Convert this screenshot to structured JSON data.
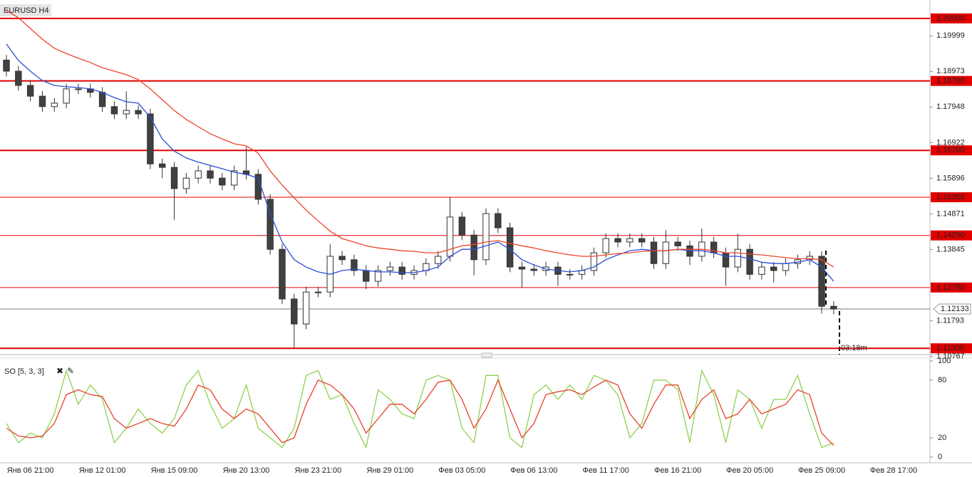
{
  "chart_data": [
    {
      "type": "candlestick",
      "title": "EURUSD H4",
      "categories": [
        null,
        null,
        "Янв 06 21:00",
        null,
        null,
        null,
        null,
        null,
        "Янв 12 01:00",
        null,
        null,
        null,
        null,
        null,
        "Янв 15 09:00",
        null,
        null,
        null,
        null,
        null,
        "Янв 20 13:00",
        null,
        null,
        null,
        null,
        null,
        "Янв 23 21:00",
        null,
        null,
        null,
        null,
        null,
        "Янв 29 01:00",
        null,
        null,
        null,
        null,
        null,
        "Фев 03 05:00",
        null,
        null,
        null,
        null,
        null,
        "Фев 06 13:00",
        null,
        null,
        null,
        null,
        null,
        "Фев 11 17:00",
        null,
        null,
        null,
        null,
        null,
        "Фев 16 21:00",
        null,
        null,
        null,
        null,
        null,
        "Фев 20 05:00",
        null,
        null,
        null,
        null,
        null,
        "Фев 25 09:00",
        null,
        null,
        null,
        null,
        null,
        "Фев 28 17:00"
      ],
      "open": [
        1.193,
        1.1898,
        1.1857,
        1.1826,
        1.1796,
        1.1806,
        1.1847,
        1.1847,
        1.1837,
        1.1796,
        1.1775,
        1.1785,
        1.1775,
        1.1631,
        1.1621,
        1.156,
        1.159,
        1.1611,
        1.159,
        1.157,
        1.1611,
        1.1601,
        1.1529,
        1.1385,
        1.1242,
        1.117,
        1.1262,
        1.1262,
        1.1365,
        1.1355,
        1.1324,
        1.1293,
        1.1324,
        1.1334,
        1.1313,
        1.1324,
        1.1344,
        1.1365,
        1.1478,
        1.1426,
        1.1355,
        1.1488,
        1.1447,
        1.1334,
        1.1328,
        1.1324,
        1.1334,
        1.1313,
        1.1313,
        1.1324,
        1.1375,
        1.1416,
        1.1406,
        1.1416,
        1.1406,
        1.1344,
        1.1406,
        1.1395,
        1.1365,
        1.1406,
        1.1375,
        1.1334,
        1.1385,
        1.1313,
        1.1334,
        1.1324,
        1.1344,
        1.1355,
        1.1365,
        1.1221,
        null,
        null,
        null,
        null,
        null
      ],
      "high": [
        1.1945,
        1.1913,
        1.1872,
        1.1841,
        1.1821,
        1.1862,
        1.1862,
        1.1862,
        1.1852,
        1.1811,
        1.184,
        1.18,
        1.179,
        1.1646,
        1.1636,
        1.1605,
        1.1626,
        1.1626,
        1.1605,
        1.1626,
        1.168,
        1.1616,
        1.1544,
        1.14,
        1.1257,
        1.1277,
        1.1277,
        1.14,
        1.138,
        1.137,
        1.1339,
        1.1339,
        1.1349,
        1.1349,
        1.1339,
        1.1359,
        1.138,
        1.1535,
        1.1493,
        1.1441,
        1.1503,
        1.1503,
        1.1462,
        1.1349,
        1.1343,
        1.1349,
        1.1349,
        1.1328,
        1.1339,
        1.139,
        1.1431,
        1.1431,
        1.1431,
        1.1431,
        1.1421,
        1.144,
        1.1421,
        1.141,
        1.1445,
        1.1421,
        1.139,
        1.143,
        1.14,
        1.1349,
        1.1349,
        1.1359,
        1.137,
        1.138,
        1.138,
        1.1236,
        null,
        null,
        null,
        null,
        null
      ],
      "low": [
        1.1883,
        1.1842,
        1.1811,
        1.1781,
        1.1781,
        1.1791,
        1.1832,
        1.1822,
        1.1781,
        1.176,
        1.176,
        1.176,
        1.1616,
        1.159,
        1.147,
        1.1545,
        1.1575,
        1.1575,
        1.1555,
        1.1555,
        1.1586,
        1.1514,
        1.137,
        1.1227,
        1.11,
        1.1155,
        1.1247,
        1.1247,
        1.134,
        1.1309,
        1.127,
        1.1278,
        1.1309,
        1.1298,
        1.1298,
        1.1309,
        1.1329,
        1.135,
        1.1411,
        1.131,
        1.134,
        1.1432,
        1.1319,
        1.1275,
        1.1309,
        1.1309,
        1.128,
        1.1298,
        1.1298,
        1.1309,
        1.136,
        1.1391,
        1.1391,
        1.1391,
        1.1329,
        1.1329,
        1.138,
        1.134,
        1.135,
        1.136,
        1.128,
        1.1319,
        1.1298,
        1.1298,
        1.129,
        1.1309,
        1.1329,
        1.134,
        1.12,
        1.1198,
        null,
        null,
        null,
        null,
        null
      ],
      "close": [
        1.1898,
        1.1857,
        1.1826,
        1.1796,
        1.1806,
        1.1847,
        1.1847,
        1.1837,
        1.1796,
        1.1775,
        1.1785,
        1.1775,
        1.1631,
        1.1621,
        1.156,
        1.159,
        1.1611,
        1.159,
        1.157,
        1.1611,
        1.1601,
        1.1529,
        1.1385,
        1.1242,
        1.117,
        1.1262,
        1.1262,
        1.1365,
        1.1355,
        1.1324,
        1.1293,
        1.1324,
        1.1334,
        1.1313,
        1.1324,
        1.1344,
        1.1365,
        1.1478,
        1.1426,
        1.1355,
        1.1488,
        1.1447,
        1.1334,
        1.1328,
        1.1324,
        1.1334,
        1.1313,
        1.1313,
        1.1324,
        1.1375,
        1.1416,
        1.1406,
        1.1416,
        1.1406,
        1.1344,
        1.1406,
        1.1395,
        1.1365,
        1.1406,
        1.1375,
        1.1334,
        1.1385,
        1.1313,
        1.1334,
        1.1324,
        1.1344,
        1.1355,
        1.1365,
        1.1221,
        1.12133,
        null,
        null,
        null,
        null,
        null
      ],
      "up_color": "#ffffff",
      "down_color": "#404040",
      "wick_color": "#333333",
      "series": [
        {
          "color": "#2a4fd6",
          "values": [
            1.1976,
            1.1929,
            1.1898,
            1.1871,
            1.1857,
            1.1853,
            1.1851,
            1.1847,
            1.1837,
            1.1822,
            1.181,
            1.1806,
            1.1765,
            1.1703,
            1.1668,
            1.1648,
            1.1636,
            1.1627,
            1.1617,
            1.1607,
            1.1601,
            1.159,
            1.1488,
            1.1406,
            1.1355,
            1.1334,
            1.132,
            1.1313,
            1.1324,
            1.1328,
            1.1324,
            1.132,
            1.132,
            1.1318,
            1.1318,
            1.1324,
            1.1334,
            1.1365,
            1.1385,
            1.1385,
            1.1395,
            1.1406,
            1.1385,
            1.1355,
            1.134,
            1.1328,
            1.1324,
            1.132,
            1.1324,
            1.1334,
            1.1355,
            1.1369,
            1.1381,
            1.1385,
            1.1381,
            1.1381,
            1.1385,
            1.1381,
            1.1381,
            1.1375,
            1.1365,
            1.1365,
            1.1358,
            1.1348,
            1.1344,
            1.1344,
            1.1348,
            1.1355,
            1.1334,
            1.1293,
            null,
            null,
            null,
            null,
            null
          ]
        },
        {
          "color": "#f0452a",
          "values": [
            1.2073,
            1.2052,
            1.2021,
            1.199,
            1.1964,
            1.1949,
            1.1935,
            1.1923,
            1.1908,
            1.1898,
            1.1888,
            1.1874,
            1.1847,
            1.1816,
            1.1785,
            1.1759,
            1.1738,
            1.1718,
            1.1703,
            1.1689,
            1.1683,
            1.1662,
            1.1611,
            1.157,
            1.1533,
            1.1498,
            1.1467,
            1.1437,
            1.1416,
            1.1406,
            1.1395,
            1.1389,
            1.1385,
            1.1381,
            1.1379,
            1.1375,
            1.1375,
            1.1385,
            1.1395,
            1.1399,
            1.1406,
            1.141,
            1.1402,
            1.1395,
            1.1389,
            1.1381,
            1.1375,
            1.1369,
            1.1365,
            1.1365,
            1.1369,
            1.1373,
            1.1375,
            1.1379,
            1.1381,
            1.1381,
            1.1385,
            1.1385,
            1.1385,
            1.1381,
            1.1375,
            1.1375,
            1.1371,
            1.1369,
            1.1365,
            1.1361,
            1.1358,
            1.1358,
            1.1355,
            1.1334,
            null,
            null,
            null,
            null,
            null
          ]
        }
      ],
      "ylim": [
        1.1082,
        1.2103
      ],
      "yticks": [
        1.19999,
        1.18973,
        1.17948,
        1.16922,
        1.15896,
        1.14871,
        1.13845,
        1.11793,
        1.10767
      ],
      "levels": [
        {
          "value": 1.205,
          "label": "1.20500",
          "line_width": 2
        },
        {
          "value": 1.187,
          "label": "1.18700",
          "line_width": 2
        },
        {
          "value": 1.167,
          "label": "1.16700",
          "line_width": 2
        },
        {
          "value": 1.1535,
          "label": "1.15350",
          "line_width": 1
        },
        {
          "value": 1.1425,
          "label": "1.14250",
          "line_width": 1
        },
        {
          "value": 1.1275,
          "label": "1.12750",
          "line_width": 1
        },
        {
          "value": 1.11,
          "label": "1.11000",
          "line_width": 2
        }
      ],
      "level_color": "#e00000",
      "last_price": 1.12133,
      "countdown": "03:18m"
    },
    {
      "type": "line",
      "title": "SO [5, 3, 3]",
      "ylim": [
        0,
        100
      ],
      "yticks": [
        0,
        20,
        80,
        100
      ],
      "series": [
        {
          "color": "#8fd14f",
          "values": [
            35,
            15,
            25,
            20,
            45,
            90,
            55,
            75,
            60,
            15,
            30,
            50,
            35,
            25,
            40,
            75,
            90,
            55,
            30,
            40,
            75,
            30,
            20,
            10,
            30,
            85,
            90,
            60,
            65,
            35,
            10,
            70,
            60,
            45,
            40,
            80,
            85,
            80,
            30,
            15,
            85,
            85,
            20,
            10,
            65,
            75,
            60,
            75,
            60,
            85,
            80,
            65,
            20,
            35,
            80,
            80,
            70,
            15,
            90,
            65,
            15,
            70,
            60,
            30,
            60,
            60,
            85,
            45,
            10,
            15,
            null,
            null,
            null,
            null,
            null
          ]
        },
        {
          "color": "#e8412a",
          "values": [
            30,
            22,
            20,
            22,
            35,
            65,
            70,
            65,
            63,
            40,
            30,
            35,
            40,
            35,
            32,
            50,
            75,
            70,
            50,
            40,
            50,
            45,
            30,
            15,
            20,
            55,
            80,
            75,
            65,
            50,
            25,
            40,
            55,
            55,
            45,
            60,
            78,
            80,
            60,
            30,
            50,
            80,
            50,
            20,
            35,
            65,
            68,
            70,
            65,
            73,
            80,
            75,
            45,
            30,
            55,
            75,
            75,
            40,
            60,
            70,
            40,
            45,
            60,
            45,
            50,
            55,
            70,
            65,
            25,
            12,
            null,
            null,
            null,
            null,
            null
          ]
        }
      ]
    }
  ]
}
